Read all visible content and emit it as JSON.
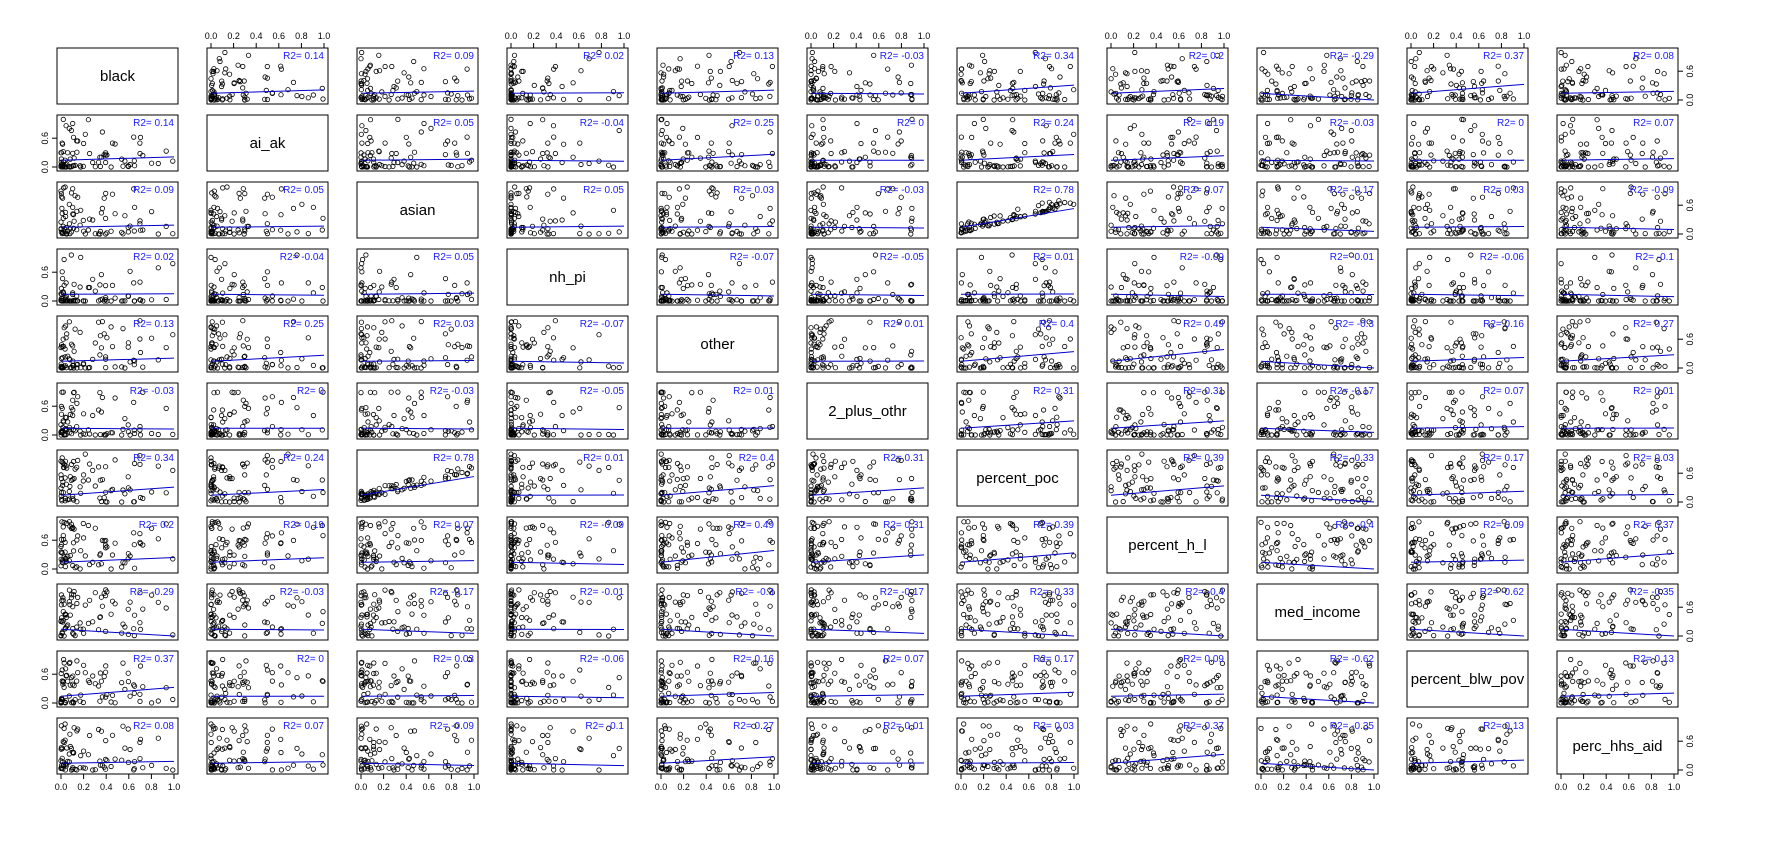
{
  "chart_data": {
    "type": "scatter",
    "variables": [
      "black",
      "ai_ak",
      "asian",
      "nh_pi",
      "other",
      "2_plus_othr",
      "percent_poc",
      "percent_h_l",
      "med_income",
      "percent_blw_pov",
      "perc_hhs_aid"
    ],
    "axis_range": [
      0,
      1
    ],
    "x_ticks": [
      "0.0",
      "0.2",
      "0.4",
      "0.6",
      "0.8",
      "1.0"
    ],
    "y_ticks": [
      "0.0",
      "0.6"
    ],
    "r2_prefix": "R2= ",
    "r2_matrix": [
      [
        null,
        0.14,
        0.09,
        0.02,
        0.13,
        -0.03,
        0.34,
        0.2,
        -0.29,
        0.37,
        0.08
      ],
      [
        0.14,
        null,
        0.05,
        -0.04,
        0.25,
        0,
        0.24,
        0.19,
        -0.03,
        0,
        0.07
      ],
      [
        0.09,
        0.05,
        null,
        0.05,
        0.03,
        -0.03,
        0.78,
        0.07,
        -0.17,
        0.03,
        -0.09
      ],
      [
        0.02,
        -0.04,
        0.05,
        null,
        -0.07,
        -0.05,
        0.01,
        -0.09,
        -0.01,
        -0.06,
        -0.1
      ],
      [
        0.13,
        0.25,
        0.03,
        -0.07,
        null,
        0.01,
        0.4,
        0.49,
        -0.3,
        0.16,
        0.27
      ],
      [
        -0.03,
        0,
        -0.03,
        -0.05,
        0.01,
        null,
        0.31,
        0.31,
        -0.17,
        0.07,
        0.01
      ],
      [
        0.34,
        0.24,
        0.78,
        0.01,
        0.4,
        0.31,
        null,
        0.39,
        -0.33,
        0.17,
        0.03
      ],
      [
        0.2,
        0.19,
        0.07,
        -0.09,
        0.49,
        0.31,
        0.39,
        null,
        -0.4,
        0.09,
        0.37
      ],
      [
        -0.29,
        -0.03,
        -0.17,
        -0.01,
        -0.3,
        -0.17,
        -0.33,
        -0.4,
        null,
        -0.62,
        -0.35
      ],
      [
        0.37,
        0,
        0.03,
        -0.06,
        0.16,
        0.07,
        0.17,
        0.09,
        -0.62,
        null,
        0.13
      ],
      [
        0.08,
        0.07,
        -0.09,
        -0.1,
        0.27,
        0.01,
        0.03,
        0.37,
        -0.35,
        0.13,
        null
      ]
    ],
    "grid": false,
    "title": "",
    "xlabel": "",
    "ylabel": ""
  },
  "colors": {
    "points": "#000000",
    "regression_line": "#0000cc",
    "r2_text": "#1a1aff",
    "panel_border": "#000000"
  }
}
